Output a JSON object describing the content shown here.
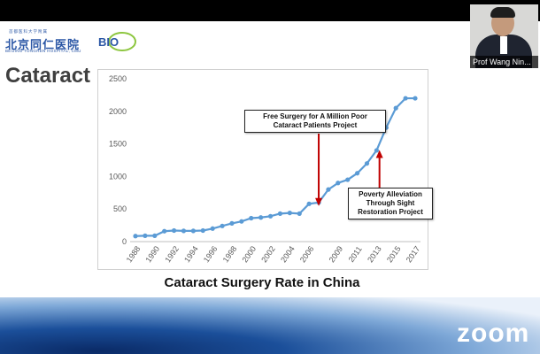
{
  "logo": {
    "top_text": "首都医科大学附属",
    "chinese_name": "北京同仁医院",
    "english_name": "BEIJING TONGREN HOSPITAL, CMU",
    "badge_text": "BIO"
  },
  "slide": {
    "title": "Cataract",
    "caption": "Cataract Surgery Rate in China"
  },
  "annotations": {
    "project1": [
      "Free Surgery for A Million Poor",
      "Cataract Patients Project"
    ],
    "project2": [
      "Poverty Alleviation",
      "Through Sight",
      "Restoration Project"
    ]
  },
  "video": {
    "participant_name": "Prof Wang Nin..."
  },
  "app": {
    "watermark": "zoom"
  },
  "colors": {
    "line": "#5b9bd5",
    "arrow": "#c00000",
    "title": "#3f3f3f",
    "logo": "#2a56a5"
  },
  "chart_data": {
    "type": "line",
    "x": [
      1988,
      1989,
      1990,
      1991,
      1992,
      1993,
      1994,
      1995,
      1996,
      1997,
      1998,
      1999,
      2000,
      2001,
      2002,
      2003,
      2004,
      2005,
      2006,
      2007,
      2008,
      2009,
      2010,
      2011,
      2012,
      2013,
      2014,
      2015,
      2016,
      2017
    ],
    "values": [
      85,
      90,
      90,
      160,
      170,
      165,
      165,
      170,
      200,
      240,
      280,
      310,
      360,
      370,
      390,
      430,
      440,
      430,
      580,
      600,
      800,
      900,
      950,
      1050,
      1200,
      1400,
      1750,
      2050,
      2200,
      2200
    ],
    "xticks": [
      "1988",
      "1990",
      "1992",
      "1994",
      "1996",
      "1998",
      "2000",
      "2002",
      "2004",
      "2006",
      "2009",
      "2011",
      "2013",
      "2015",
      "2017"
    ],
    "yticks": [
      "0",
      "500",
      "1000",
      "1500",
      "2000",
      "2500"
    ],
    "ylim": [
      0,
      2500
    ],
    "grid": false,
    "legend": "none"
  }
}
